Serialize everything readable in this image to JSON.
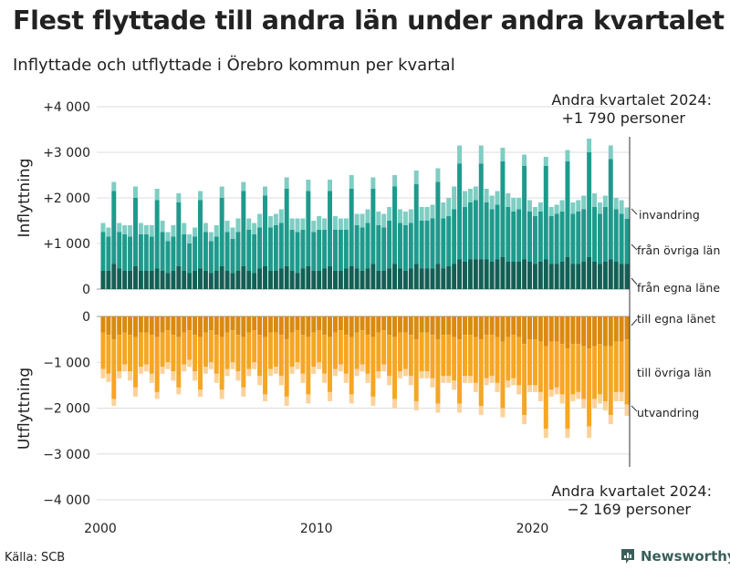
{
  "title": "Flest flyttade till andra län under andra kvartalet",
  "subtitle": "Inflyttade och utflyttade i Örebro kommun per kvartal",
  "source": "Källa: SCB",
  "brand": "Newsworthy",
  "chart_data": {
    "type": "bar",
    "stacked": true,
    "x_label_ticks": [
      "2000",
      "2010",
      "2020"
    ],
    "top_panel": {
      "ylabel": "Inflyttning",
      "ylim": [
        0,
        4000
      ],
      "yticks": [
        {
          "v": 0,
          "label": "0"
        },
        {
          "v": 1000,
          "label": "+1 000"
        },
        {
          "v": 2000,
          "label": "+2 000"
        },
        {
          "v": 3000,
          "label": "+3 000"
        },
        {
          "v": 4000,
          "label": "+4 000"
        }
      ],
      "series_labels": {
        "invandring": "invandring",
        "fran_ovriga_lan": "från övriga län",
        "fran_egna_lanet": "från egna läne"
      },
      "colors": {
        "fran_egna_lanet": "#145f55",
        "fran_ovriga_lan": "#1e9a8c",
        "invandring": "#7fcdc3"
      }
    },
    "bottom_panel": {
      "ylabel": "Utflyttning",
      "ylim": [
        -4000,
        0
      ],
      "yticks": [
        {
          "v": 0,
          "label": "0"
        },
        {
          "v": -1000,
          "label": "−1 000"
        },
        {
          "v": -2000,
          "label": "−2 000"
        },
        {
          "v": -3000,
          "label": "−3 000"
        },
        {
          "v": -4000,
          "label": "−4 000"
        }
      ],
      "series_labels": {
        "till_egna_lanet": "till egna länet",
        "till_ovriga_lan": "till övriga län",
        "utvandring": "utvandring"
      },
      "colors": {
        "till_egna_lanet": "#d98a0f",
        "till_ovriga_lan": "#f5a623",
        "utvandring": "#fcd29a"
      }
    },
    "annotation_top": {
      "line1": "Andra kvartalet 2024:",
      "line2": "+1 790 personer"
    },
    "annotation_bottom": {
      "line1": "Andra kvartalet 2024:",
      "line2": "−2 169 personer"
    },
    "quarters": [
      {
        "p": "2000Q1",
        "ie": 400,
        "io": 850,
        "ii": 200,
        "oe": 350,
        "oo": 800,
        "ou": 200
      },
      {
        "p": "2000Q2",
        "ie": 400,
        "io": 750,
        "ii": 200,
        "oe": 400,
        "oo": 850,
        "ou": 180
      },
      {
        "p": "2000Q3",
        "ie": 550,
        "io": 1600,
        "ii": 200,
        "oe": 500,
        "oo": 1300,
        "ou": 150
      },
      {
        "p": "2000Q4",
        "ie": 450,
        "io": 800,
        "ii": 200,
        "oe": 400,
        "oo": 800,
        "ou": 150
      },
      {
        "p": "2001Q1",
        "ie": 400,
        "io": 800,
        "ii": 200,
        "oe": 350,
        "oo": 700,
        "ou": 150
      },
      {
        "p": "2001Q2",
        "ie": 400,
        "io": 750,
        "ii": 250,
        "oe": 400,
        "oo": 800,
        "ou": 200
      },
      {
        "p": "2001Q3",
        "ie": 500,
        "io": 1500,
        "ii": 250,
        "oe": 450,
        "oo": 1100,
        "ou": 200
      },
      {
        "p": "2001Q4",
        "ie": 400,
        "io": 800,
        "ii": 250,
        "oe": 350,
        "oo": 750,
        "ou": 150
      },
      {
        "p": "2002Q1",
        "ie": 400,
        "io": 800,
        "ii": 200,
        "oe": 350,
        "oo": 700,
        "ou": 150
      },
      {
        "p": "2002Q2",
        "ie": 400,
        "io": 750,
        "ii": 250,
        "oe": 400,
        "oo": 850,
        "ou": 200
      },
      {
        "p": "2002Q3",
        "ie": 450,
        "io": 1500,
        "ii": 250,
        "oe": 450,
        "oo": 1200,
        "ou": 150
      },
      {
        "p": "2002Q4",
        "ie": 400,
        "io": 850,
        "ii": 250,
        "oe": 350,
        "oo": 750,
        "ou": 150
      },
      {
        "p": "2003Q1",
        "ie": 350,
        "io": 700,
        "ii": 200,
        "oe": 300,
        "oo": 700,
        "ou": 150
      },
      {
        "p": "2003Q2",
        "ie": 400,
        "io": 750,
        "ii": 250,
        "oe": 400,
        "oo": 800,
        "ou": 200
      },
      {
        "p": "2003Q3",
        "ie": 500,
        "io": 1400,
        "ii": 200,
        "oe": 450,
        "oo": 1100,
        "ou": 150
      },
      {
        "p": "2003Q4",
        "ie": 400,
        "io": 800,
        "ii": 250,
        "oe": 350,
        "oo": 700,
        "ou": 150
      },
      {
        "p": "2004Q1",
        "ie": 350,
        "io": 650,
        "ii": 200,
        "oe": 300,
        "oo": 650,
        "ou": 150
      },
      {
        "p": "2004Q2",
        "ie": 400,
        "io": 750,
        "ii": 200,
        "oe": 400,
        "oo": 800,
        "ou": 200
      },
      {
        "p": "2004Q3",
        "ie": 450,
        "io": 1500,
        "ii": 200,
        "oe": 450,
        "oo": 1150,
        "ou": 150
      },
      {
        "p": "2004Q4",
        "ie": 400,
        "io": 850,
        "ii": 200,
        "oe": 350,
        "oo": 750,
        "ou": 150
      },
      {
        "p": "2005Q1",
        "ie": 350,
        "io": 700,
        "ii": 200,
        "oe": 300,
        "oo": 700,
        "ou": 150
      },
      {
        "p": "2005Q2",
        "ie": 400,
        "io": 750,
        "ii": 250,
        "oe": 400,
        "oo": 850,
        "ou": 200
      },
      {
        "p": "2005Q3",
        "ie": 500,
        "io": 1500,
        "ii": 250,
        "oe": 450,
        "oo": 1150,
        "ou": 200
      },
      {
        "p": "2005Q4",
        "ie": 400,
        "io": 850,
        "ii": 250,
        "oe": 350,
        "oo": 800,
        "ou": 150
      },
      {
        "p": "2006Q1",
        "ie": 350,
        "io": 750,
        "ii": 250,
        "oe": 300,
        "oo": 700,
        "ou": 150
      },
      {
        "p": "2006Q2",
        "ie": 400,
        "io": 850,
        "ii": 300,
        "oe": 400,
        "oo": 800,
        "ou": 200
      },
      {
        "p": "2006Q3",
        "ie": 500,
        "io": 1650,
        "ii": 200,
        "oe": 450,
        "oo": 1100,
        "ou": 200
      },
      {
        "p": "2006Q4",
        "ie": 400,
        "io": 900,
        "ii": 250,
        "oe": 350,
        "oo": 800,
        "ou": 150
      },
      {
        "p": "2007Q1",
        "ie": 350,
        "io": 850,
        "ii": 250,
        "oe": 300,
        "oo": 700,
        "ou": 150
      },
      {
        "p": "2007Q2",
        "ie": 450,
        "io": 900,
        "ii": 300,
        "oe": 400,
        "oo": 900,
        "ou": 200
      },
      {
        "p": "2007Q3",
        "ie": 500,
        "io": 1550,
        "ii": 200,
        "oe": 450,
        "oo": 1250,
        "ou": 150
      },
      {
        "p": "2007Q4",
        "ie": 400,
        "io": 950,
        "ii": 250,
        "oe": 350,
        "oo": 800,
        "ou": 150
      },
      {
        "p": "2008Q1",
        "ie": 400,
        "io": 1000,
        "ii": 250,
        "oe": 350,
        "oo": 750,
        "ou": 150
      },
      {
        "p": "2008Q2",
        "ie": 450,
        "io": 1000,
        "ii": 300,
        "oe": 400,
        "oo": 900,
        "ou": 200
      },
      {
        "p": "2008Q3",
        "ie": 500,
        "io": 1700,
        "ii": 250,
        "oe": 500,
        "oo": 1250,
        "ou": 200
      },
      {
        "p": "2008Q4",
        "ie": 400,
        "io": 900,
        "ii": 250,
        "oe": 350,
        "oo": 750,
        "ou": 150
      },
      {
        "p": "2009Q1",
        "ie": 350,
        "io": 900,
        "ii": 300,
        "oe": 300,
        "oo": 700,
        "ou": 150
      },
      {
        "p": "2009Q2",
        "ie": 450,
        "io": 850,
        "ii": 250,
        "oe": 400,
        "oo": 850,
        "ou": 200
      },
      {
        "p": "2009Q3",
        "ie": 500,
        "io": 1650,
        "ii": 250,
        "oe": 450,
        "oo": 1250,
        "ou": 200
      },
      {
        "p": "2009Q4",
        "ie": 400,
        "io": 850,
        "ii": 250,
        "oe": 350,
        "oo": 750,
        "ou": 150
      },
      {
        "p": "2010Q1",
        "ie": 400,
        "io": 900,
        "ii": 300,
        "oe": 300,
        "oo": 700,
        "ou": 150
      },
      {
        "p": "2010Q2",
        "ie": 450,
        "io": 850,
        "ii": 250,
        "oe": 400,
        "oo": 850,
        "ou": 200
      },
      {
        "p": "2010Q3",
        "ie": 500,
        "io": 1650,
        "ii": 250,
        "oe": 450,
        "oo": 1200,
        "ou": 200
      },
      {
        "p": "2010Q4",
        "ie": 400,
        "io": 900,
        "ii": 300,
        "oe": 350,
        "oo": 800,
        "ou": 150
      },
      {
        "p": "2011Q1",
        "ie": 400,
        "io": 900,
        "ii": 250,
        "oe": 300,
        "oo": 750,
        "ou": 150
      },
      {
        "p": "2011Q2",
        "ie": 450,
        "io": 850,
        "ii": 250,
        "oe": 400,
        "oo": 850,
        "ou": 200
      },
      {
        "p": "2011Q3",
        "ie": 500,
        "io": 1700,
        "ii": 300,
        "oe": 450,
        "oo": 1250,
        "ou": 200
      },
      {
        "p": "2011Q4",
        "ie": 450,
        "io": 950,
        "ii": 250,
        "oe": 350,
        "oo": 800,
        "ou": 150
      },
      {
        "p": "2012Q1",
        "ie": 400,
        "io": 950,
        "ii": 300,
        "oe": 300,
        "oo": 750,
        "ou": 150
      },
      {
        "p": "2012Q2",
        "ie": 450,
        "io": 1000,
        "ii": 300,
        "oe": 400,
        "oo": 850,
        "ou": 200
      },
      {
        "p": "2012Q3",
        "ie": 550,
        "io": 1650,
        "ii": 250,
        "oe": 450,
        "oo": 1300,
        "ou": 200
      },
      {
        "p": "2012Q4",
        "ie": 400,
        "io": 1000,
        "ii": 300,
        "oe": 350,
        "oo": 850,
        "ou": 150
      },
      {
        "p": "2013Q1",
        "ie": 400,
        "io": 950,
        "ii": 300,
        "oe": 300,
        "oo": 750,
        "ou": 150
      },
      {
        "p": "2013Q2",
        "ie": 450,
        "io": 1050,
        "ii": 300,
        "oe": 400,
        "oo": 900,
        "ou": 200
      },
      {
        "p": "2013Q3",
        "ie": 550,
        "io": 1700,
        "ii": 250,
        "oe": 450,
        "oo": 1350,
        "ou": 200
      },
      {
        "p": "2013Q4",
        "ie": 450,
        "io": 1000,
        "ii": 300,
        "oe": 350,
        "oo": 850,
        "ou": 150
      },
      {
        "p": "2014Q1",
        "ie": 400,
        "io": 1000,
        "ii": 300,
        "oe": 350,
        "oo": 800,
        "ou": 150
      },
      {
        "p": "2014Q2",
        "ie": 450,
        "io": 1000,
        "ii": 300,
        "oe": 400,
        "oo": 900,
        "ou": 200
      },
      {
        "p": "2014Q3",
        "ie": 550,
        "io": 1750,
        "ii": 300,
        "oe": 500,
        "oo": 1350,
        "ou": 200
      },
      {
        "p": "2014Q4",
        "ie": 450,
        "io": 1050,
        "ii": 300,
        "oe": 350,
        "oo": 850,
        "ou": 150
      },
      {
        "p": "2015Q1",
        "ie": 450,
        "io": 1050,
        "ii": 300,
        "oe": 350,
        "oo": 850,
        "ou": 150
      },
      {
        "p": "2015Q2",
        "ie": 450,
        "io": 1100,
        "ii": 300,
        "oe": 400,
        "oo": 950,
        "ou": 200
      },
      {
        "p": "2015Q3",
        "ie": 550,
        "io": 1800,
        "ii": 300,
        "oe": 500,
        "oo": 1400,
        "ou": 200
      },
      {
        "p": "2015Q4",
        "ie": 450,
        "io": 1100,
        "ii": 350,
        "oe": 400,
        "oo": 900,
        "ou": 150
      },
      {
        "p": "2016Q1",
        "ie": 500,
        "io": 1100,
        "ii": 400,
        "oe": 400,
        "oo": 900,
        "ou": 150
      },
      {
        "p": "2016Q2",
        "ie": 550,
        "io": 1200,
        "ii": 500,
        "oe": 450,
        "oo": 950,
        "ou": 200
      },
      {
        "p": "2016Q3",
        "ie": 650,
        "io": 2100,
        "ii": 400,
        "oe": 500,
        "oo": 1400,
        "ou": 200
      },
      {
        "p": "2016Q4",
        "ie": 600,
        "io": 1200,
        "ii": 350,
        "oe": 400,
        "oo": 900,
        "ou": 150
      },
      {
        "p": "2017Q1",
        "ie": 650,
        "io": 1250,
        "ii": 300,
        "oe": 400,
        "oo": 900,
        "ou": 150
      },
      {
        "p": "2017Q2",
        "ie": 650,
        "io": 1300,
        "ii": 300,
        "oe": 450,
        "oo": 1000,
        "ou": 200
      },
      {
        "p": "2017Q3",
        "ie": 650,
        "io": 2100,
        "ii": 400,
        "oe": 500,
        "oo": 1450,
        "ou": 200
      },
      {
        "p": "2017Q4",
        "ie": 650,
        "io": 1250,
        "ii": 300,
        "oe": 400,
        "oo": 950,
        "ou": 150
      },
      {
        "p": "2018Q1",
        "ie": 600,
        "io": 1150,
        "ii": 300,
        "oe": 400,
        "oo": 900,
        "ou": 150
      },
      {
        "p": "2018Q2",
        "ie": 650,
        "io": 1200,
        "ii": 300,
        "oe": 450,
        "oo": 1000,
        "ou": 200
      },
      {
        "p": "2018Q3",
        "ie": 700,
        "io": 2100,
        "ii": 300,
        "oe": 550,
        "oo": 1450,
        "ou": 200
      },
      {
        "p": "2018Q4",
        "ie": 600,
        "io": 1200,
        "ii": 300,
        "oe": 450,
        "oo": 950,
        "ou": 150
      },
      {
        "p": "2019Q1",
        "ie": 600,
        "io": 1100,
        "ii": 300,
        "oe": 400,
        "oo": 950,
        "ou": 150
      },
      {
        "p": "2019Q2",
        "ie": 600,
        "io": 1150,
        "ii": 250,
        "oe": 450,
        "oo": 1050,
        "ou": 200
      },
      {
        "p": "2019Q3",
        "ie": 650,
        "io": 2050,
        "ii": 250,
        "oe": 600,
        "oo": 1550,
        "ou": 200
      },
      {
        "p": "2019Q4",
        "ie": 600,
        "io": 1100,
        "ii": 250,
        "oe": 500,
        "oo": 1000,
        "ou": 150
      },
      {
        "p": "2020Q1",
        "ie": 550,
        "io": 1050,
        "ii": 200,
        "oe": 500,
        "oo": 1000,
        "ou": 150
      },
      {
        "p": "2020Q2",
        "ie": 600,
        "io": 1100,
        "ii": 200,
        "oe": 550,
        "oo": 1100,
        "ou": 200
      },
      {
        "p": "2020Q3",
        "ie": 650,
        "io": 2050,
        "ii": 200,
        "oe": 650,
        "oo": 1800,
        "ou": 200
      },
      {
        "p": "2020Q4",
        "ie": 550,
        "io": 1050,
        "ii": 200,
        "oe": 550,
        "oo": 1050,
        "ou": 150
      },
      {
        "p": "2021Q1",
        "ie": 550,
        "io": 1100,
        "ii": 200,
        "oe": 550,
        "oo": 1000,
        "ou": 150
      },
      {
        "p": "2021Q2",
        "ie": 600,
        "io": 1100,
        "ii": 250,
        "oe": 600,
        "oo": 1100,
        "ou": 200
      },
      {
        "p": "2021Q3",
        "ie": 700,
        "io": 2100,
        "ii": 250,
        "oe": 700,
        "oo": 1750,
        "ou": 200
      },
      {
        "p": "2021Q4",
        "ie": 550,
        "io": 1100,
        "ii": 250,
        "oe": 600,
        "oo": 1100,
        "ou": 150
      },
      {
        "p": "2022Q1",
        "ie": 550,
        "io": 1150,
        "ii": 250,
        "oe": 600,
        "oo": 1050,
        "ou": 150
      },
      {
        "p": "2022Q2",
        "ie": 600,
        "io": 1150,
        "ii": 300,
        "oe": 650,
        "oo": 1150,
        "ou": 200
      },
      {
        "p": "2022Q3",
        "ie": 700,
        "io": 2300,
        "ii": 300,
        "oe": 700,
        "oo": 1700,
        "ou": 250
      },
      {
        "p": "2022Q4",
        "ie": 600,
        "io": 1200,
        "ii": 300,
        "oe": 650,
        "oo": 1150,
        "ou": 200
      },
      {
        "p": "2023Q1",
        "ie": 550,
        "io": 1100,
        "ii": 250,
        "oe": 600,
        "oo": 1100,
        "ou": 200
      },
      {
        "p": "2023Q2",
        "ie": 600,
        "io": 1200,
        "ii": 250,
        "oe": 650,
        "oo": 1200,
        "ou": 200
      },
      {
        "p": "2023Q3",
        "ie": 650,
        "io": 2200,
        "ii": 300,
        "oe": 650,
        "oo": 1500,
        "ou": 200
      },
      {
        "p": "2023Q4",
        "ie": 600,
        "io": 1150,
        "ii": 250,
        "oe": 550,
        "oo": 1100,
        "ou": 200
      },
      {
        "p": "2024Q1",
        "ie": 550,
        "io": 1100,
        "ii": 300,
        "oe": 550,
        "oo": 1100,
        "ou": 200
      },
      {
        "p": "2024Q2",
        "ie": 550,
        "io": 990,
        "ii": 250,
        "oe": 500,
        "oo": 1419,
        "ou": 250
      }
    ]
  }
}
